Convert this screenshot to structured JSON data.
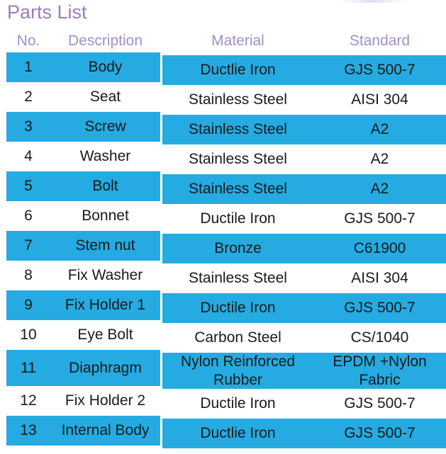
{
  "title": "Parts List",
  "colors": {
    "row_highlight": "#25aae1",
    "title_text": "#9b7cbe",
    "header_text": "#a38fc9",
    "body_text": "#1a1a1a"
  },
  "table": {
    "columns": [
      "No.",
      "Description",
      "Material",
      "Standard"
    ],
    "rows": [
      {
        "no": "1",
        "description": "Body",
        "material": "Ductlie Iron",
        "standard": "GJS 500-7",
        "highlighted": true
      },
      {
        "no": "2",
        "description": "Seat",
        "material": "Stainless Steel",
        "standard": "AISI 304",
        "highlighted": false
      },
      {
        "no": "3",
        "description": "Screw",
        "material": "Stainless Steel",
        "standard": "A2",
        "highlighted": true
      },
      {
        "no": "4",
        "description": "Washer",
        "material": "Stainless Steel",
        "standard": "A2",
        "highlighted": false
      },
      {
        "no": "5",
        "description": "Bolt",
        "material": "Stainless Steel",
        "standard": "A2",
        "highlighted": true
      },
      {
        "no": "6",
        "description": "Bonnet",
        "material": "Ductile Iron",
        "standard": "GJS 500-7",
        "highlighted": false
      },
      {
        "no": "7",
        "description": "Stem nut",
        "material": "Bronze",
        "standard": "C61900",
        "highlighted": true
      },
      {
        "no": "8",
        "description": "Fix Washer",
        "material": "Stainless Steel",
        "standard": "AISI 304",
        "highlighted": false
      },
      {
        "no": "9",
        "description": "Fix Holder 1",
        "material": "Ductile Iron",
        "standard": "GJS 500-7",
        "highlighted": true
      },
      {
        "no": "10",
        "description": "Eye Bolt",
        "material": "Carbon Steel",
        "standard": "CS/1040",
        "highlighted": false
      },
      {
        "no": "11",
        "description": "Diaphragm",
        "material": "Nylon Reinforced Rubber",
        "standard": "EPDM +Nylon Fabric",
        "highlighted": true
      },
      {
        "no": "12",
        "description": "Fix Holder 2",
        "material": "Ductile Iron",
        "standard": "GJS 500-7",
        "highlighted": false
      },
      {
        "no": "13",
        "description": "Internal Body",
        "material": "Ductlie Iron",
        "standard": "GJS 500-7",
        "highlighted": true
      }
    ]
  }
}
